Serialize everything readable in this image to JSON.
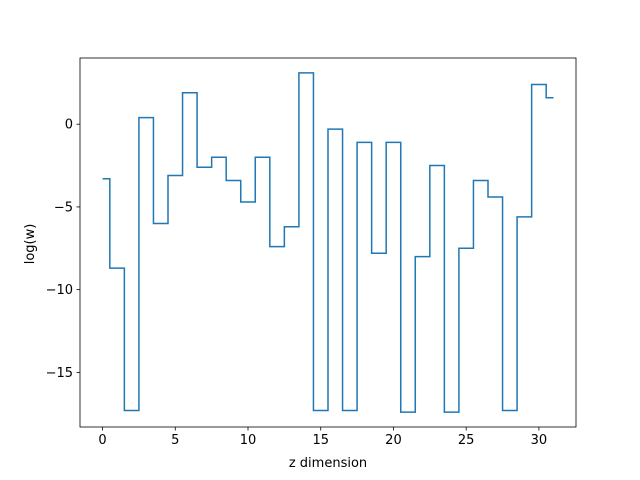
{
  "chart_data": {
    "type": "line",
    "drawstyle": "steps-mid",
    "title": "",
    "xlabel": "z dimension",
    "ylabel": "log(w)",
    "xlim": [
      -1.55,
      32.55
    ],
    "ylim": [
      -18.3,
      4.0
    ],
    "xticks": [
      0,
      5,
      10,
      15,
      20,
      25,
      30
    ],
    "yticks": [
      -15,
      -10,
      -5,
      0
    ],
    "ytick_labels": [
      "−15",
      "−10",
      "−5",
      "0"
    ],
    "grid": false,
    "legend": "none",
    "color": "#1f77b4",
    "series": [
      {
        "x": [
          0,
          1,
          2,
          3,
          4,
          5,
          6,
          7,
          8,
          9,
          10,
          11,
          12,
          13,
          14,
          15,
          16,
          17,
          18,
          19,
          20,
          21,
          22,
          23,
          24,
          25,
          26,
          27,
          28,
          29,
          30,
          31
        ],
        "values": [
          -3.3,
          -8.7,
          -17.3,
          0.4,
          -6.0,
          -3.1,
          1.9,
          -2.6,
          -2.0,
          -3.4,
          -4.7,
          -2.0,
          -7.4,
          -6.2,
          3.1,
          -17.3,
          -0.3,
          -17.3,
          -1.1,
          -7.8,
          -1.1,
          -17.4,
          -8.0,
          -2.5,
          -17.4,
          -7.5,
          -3.4,
          -4.4,
          -17.3,
          -5.6,
          2.4,
          1.6
        ]
      }
    ]
  }
}
